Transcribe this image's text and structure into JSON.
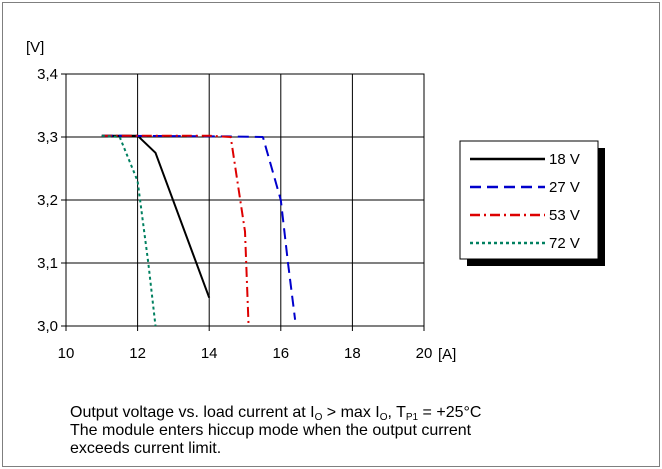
{
  "chart_data": {
    "type": "line",
    "ylabel": "[V]",
    "xlabel": "[A]",
    "xlim": [
      10,
      20
    ],
    "ylim": [
      3.0,
      3.4
    ],
    "xticks": [
      "10",
      "12",
      "14",
      "16",
      "18",
      "20"
    ],
    "yticks": [
      "3,0",
      "3,1",
      "3,2",
      "3,3",
      "3,4"
    ],
    "grid": true,
    "legend_position": "right",
    "series": [
      {
        "name": "18 V",
        "color": "#000000",
        "dash": "solid",
        "points": [
          [
            11.0,
            3.302
          ],
          [
            12.0,
            3.302
          ],
          [
            12.5,
            3.275
          ],
          [
            14.0,
            3.045
          ]
        ]
      },
      {
        "name": "27 V",
        "color": "#0000cc",
        "dash": "dash",
        "points": [
          [
            11.0,
            3.302
          ],
          [
            14.5,
            3.301
          ],
          [
            15.5,
            3.3
          ],
          [
            16.0,
            3.2
          ],
          [
            16.2,
            3.1
          ],
          [
            16.4,
            3.01
          ]
        ]
      },
      {
        "name": "53 V",
        "color": "#dd0000",
        "dash": "dashdot",
        "points": [
          [
            11.0,
            3.302
          ],
          [
            14.0,
            3.302
          ],
          [
            14.6,
            3.3
          ],
          [
            15.0,
            3.15
          ],
          [
            15.1,
            3.0
          ]
        ]
      },
      {
        "name": "72 V",
        "color": "#008060",
        "dash": "dot",
        "points": [
          [
            11.0,
            3.302
          ],
          [
            11.5,
            3.3
          ],
          [
            12.0,
            3.23
          ],
          [
            12.3,
            3.1
          ],
          [
            12.5,
            3.0
          ]
        ]
      }
    ]
  },
  "caption": {
    "line1_a": "Output voltage vs. load current at I",
    "line1_sub1": "O",
    "line1_b": " > max I",
    "line1_sub2": "O",
    "line1_c": ", T",
    "line1_sub3": "P1",
    "line1_d": " = +25°C",
    "line2": "The module enters hiccup mode when the output current",
    "line3": "exceeds current limit."
  }
}
